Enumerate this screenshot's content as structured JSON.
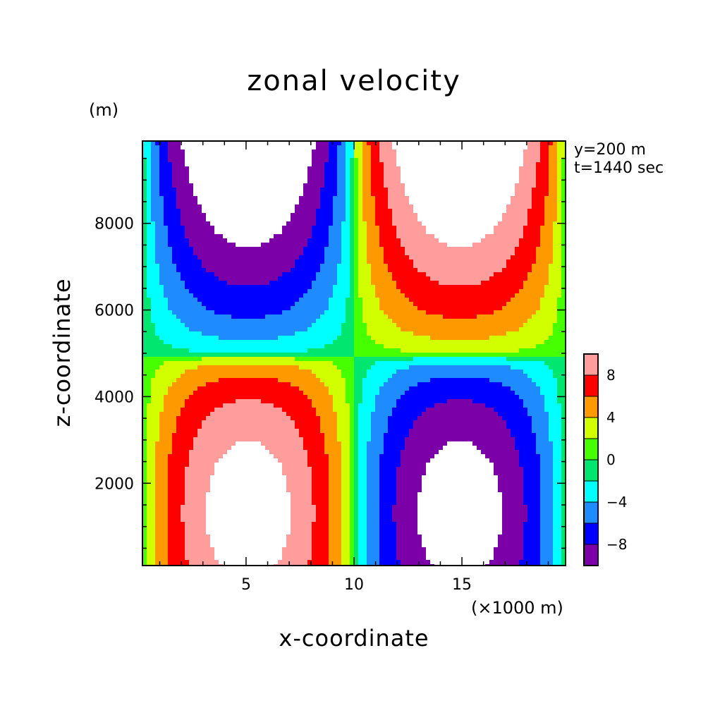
{
  "chart_data": {
    "type": "heatmap",
    "title": "zonal velocity",
    "xlabel": "x-coordinate",
    "ylabel": "z-coordinate",
    "x_unit": "(×1000 m)",
    "y_unit": "(m)",
    "annotations": [
      "y=200 m",
      "t=1440 sec"
    ],
    "xlim": [
      0.2,
      19.8
    ],
    "ylim": [
      100,
      9900
    ],
    "x_ticks": [
      5,
      10,
      15
    ],
    "y_ticks": [
      2000,
      4000,
      6000,
      8000
    ],
    "colorbar": {
      "levels": [
        -10,
        -8,
        -6,
        -4,
        -2,
        0,
        2,
        4,
        6,
        8,
        10
      ],
      "labels": [
        "-8",
        "-4",
        "0",
        "4",
        "8"
      ],
      "label_values": [
        -8,
        -4,
        0,
        4,
        8
      ],
      "colors": [
        "#7b00a8",
        "#0000ff",
        "#1e8cff",
        "#00ffff",
        "#00e66e",
        "#46ff00",
        "#d2ff00",
        "#ff9900",
        "#ff0000",
        "#ff9c9c"
      ],
      "above_color": "#ffffff",
      "below_color": "#ffffff",
      "placement": "right"
    },
    "field_description": {
      "upper_left_core": {
        "x": 3.0,
        "z": 8000,
        "value": -11
      },
      "upper_right_core": {
        "x": 17.0,
        "z": 8000,
        "value": 11
      },
      "lower_left_core": {
        "x": 3.0,
        "z": 3600,
        "value": 11
      },
      "lower_right_core": {
        "x": 17.0,
        "z": 3600,
        "value": -11
      },
      "zero_line_z": 4900,
      "zero_line_x": 10.0
    }
  }
}
